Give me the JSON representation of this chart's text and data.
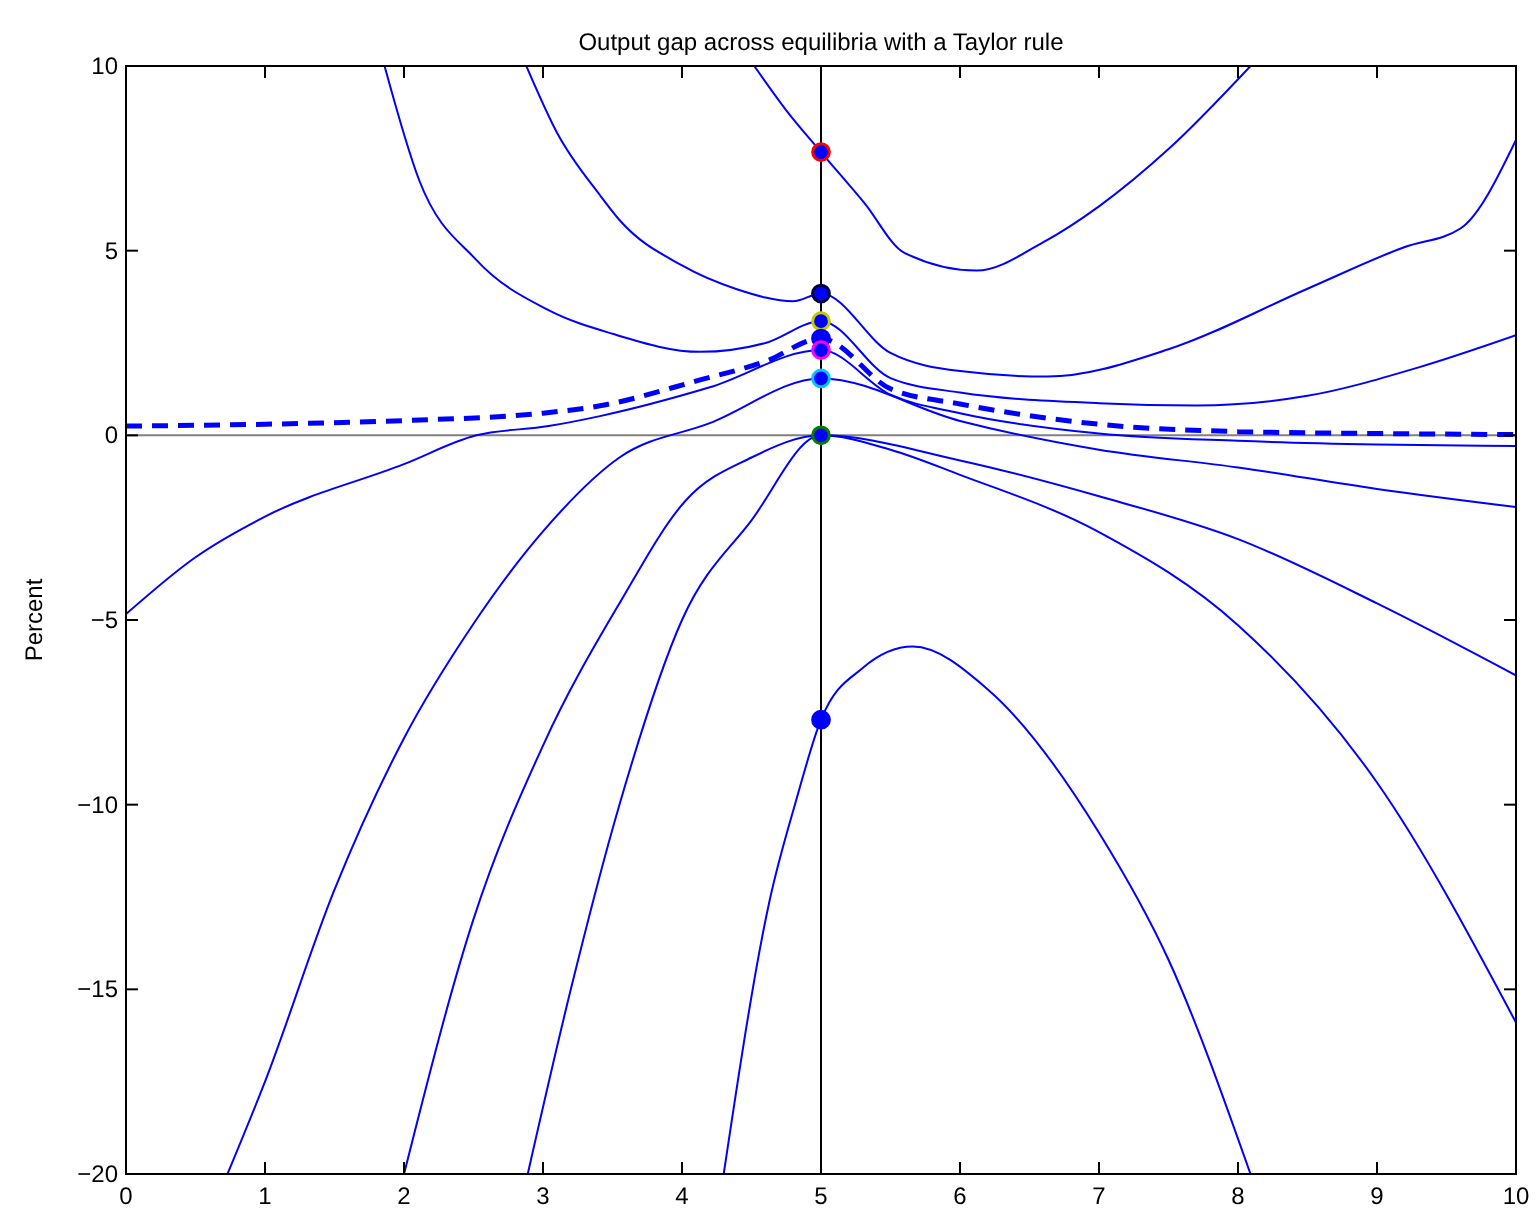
{
  "chart_data": {
    "type": "line",
    "title": "Output gap across equilibria with a Taylor rule",
    "ylabel": "Percent",
    "xlim": [
      0,
      10
    ],
    "ylim": [
      -20,
      10
    ],
    "xticks": [
      0,
      1,
      2,
      3,
      4,
      5,
      6,
      7,
      8,
      9,
      10
    ],
    "yticks": [
      {
        "value": -20,
        "label": "−20"
      },
      {
        "value": -15,
        "label": "−15"
      },
      {
        "value": -10,
        "label": "−10"
      },
      {
        "value": -5,
        "label": "−5"
      },
      0,
      5,
      10
    ],
    "grid": false,
    "marker": "none",
    "ref_lines": [
      {
        "axis": "x",
        "value": 5,
        "color": "#000000"
      },
      {
        "axis": "y",
        "value": 0,
        "color": "#808080"
      }
    ],
    "series": [
      {
        "color": "#0000ff",
        "x": [
          4.52,
          4.75,
          5,
          5.31,
          5.6,
          6.12,
          6.6,
          7.0,
          7.5,
          8.09
        ],
        "values": [
          10,
          8.8,
          7.67,
          6.3,
          4.94,
          4.46,
          5.23,
          6.2,
          7.75,
          10
        ]
      },
      {
        "color": "#0000ff",
        "x": [
          2.88,
          3.1,
          3.41,
          3.55,
          4.0,
          4.4,
          4.8,
          5,
          5.5,
          6.0,
          6.63,
          7.5,
          8.5,
          9.2,
          9.6,
          10
        ],
        "values": [
          10,
          8.2,
          6.5,
          5.83,
          4.6,
          3.95,
          3.63,
          3.84,
          2.23,
          1.74,
          1.59,
          2.33,
          3.97,
          5.1,
          5.6,
          8.0
        ]
      },
      {
        "color": "#0000ff",
        "x": [
          1.86,
          2.11,
          2.52,
          3.04,
          3.5,
          4.13,
          4.6,
          5,
          5.5,
          6.0,
          7.0,
          7.7,
          8.5,
          9.3,
          10
        ],
        "values": [
          10,
          6.9,
          4.75,
          3.39,
          2.75,
          2.26,
          2.5,
          3.09,
          1.55,
          1.16,
          0.87,
          0.81,
          1.07,
          1.84,
          2.71
        ]
      },
      {
        "color": "#0000ff",
        "line_style": "dashed",
        "x": [
          0,
          1,
          2,
          3,
          3.41,
          4.13,
          4.6,
          5,
          5.5,
          6,
          7,
          8,
          9,
          10
        ],
        "values": [
          0.25,
          0.3,
          0.4,
          0.6,
          0.8,
          1.5,
          2.0,
          2.62,
          1.26,
          0.85,
          0.3,
          0.1,
          0.05,
          0.02
        ]
      },
      {
        "color": "#0000ff",
        "x": [
          0,
          0.5,
          1,
          2,
          2.52,
          3.04,
          3.41,
          4.2,
          5,
          5.5,
          6,
          7,
          8,
          9,
          10
        ],
        "values": [
          -4.84,
          -3.3,
          -2.2,
          -0.78,
          0,
          0.25,
          0.52,
          1.3,
          2.31,
          1.1,
          0.6,
          0.05,
          -0.15,
          -0.25,
          -0.29
        ]
      },
      {
        "color": "#0000ff",
        "x": [
          0.73,
          1,
          1.5,
          2,
          2.5,
          3,
          3.55,
          4.2,
          5,
          6,
          7,
          8,
          9,
          10
        ],
        "values": [
          -20,
          -17.5,
          -12.3,
          -8.2,
          -5.1,
          -2.6,
          -0.6,
          0.33,
          1.54,
          0.39,
          -0.39,
          -0.87,
          -1.45,
          -1.94
        ]
      },
      {
        "color": "#0000ff",
        "x": [
          2.0,
          2.5,
          3,
          3.55,
          4.03,
          4.5,
          5,
          6,
          7,
          8,
          9,
          10
        ],
        "values": [
          -20,
          -13.1,
          -8.4,
          -4.55,
          -1.75,
          -0.6,
          0,
          -0.68,
          -1.65,
          -2.81,
          -4.55,
          -6.5
        ]
      },
      {
        "color": "#0000ff",
        "x": [
          2.89,
          3.2,
          3.55,
          4,
          4.5,
          5,
          5.5,
          6,
          7,
          8,
          9,
          10
        ],
        "values": [
          -20,
          -15,
          -10,
          -5.0,
          -2.3,
          0,
          -0.39,
          -1.07,
          -2.62,
          -5.14,
          -9.4,
          -15.9
        ]
      },
      {
        "color": "#0000ff",
        "x": [
          4.3,
          4.63,
          4.82,
          5,
          5.3,
          5.66,
          6.2,
          7,
          7.5,
          8.09
        ],
        "values": [
          -20,
          -12.6,
          -9.9,
          -7.7,
          -6.3,
          -5.72,
          -6.88,
          -10.76,
          -14.2,
          -20
        ]
      },
      {
        "type": "scatter",
        "marker": "circle",
        "color": "#0000ff",
        "x": [
          5,
          5,
          5,
          5,
          5,
          5,
          5,
          5
        ],
        "values": [
          7.67,
          3.84,
          3.09,
          2.62,
          2.31,
          1.54,
          0,
          -7.7
        ],
        "colors": [
          "#ff0000",
          "#000040",
          "#c8c800",
          "#0000ff",
          "#ff00ff",
          "#00c8ff",
          "#008000",
          "#0000ff"
        ]
      }
    ]
  }
}
